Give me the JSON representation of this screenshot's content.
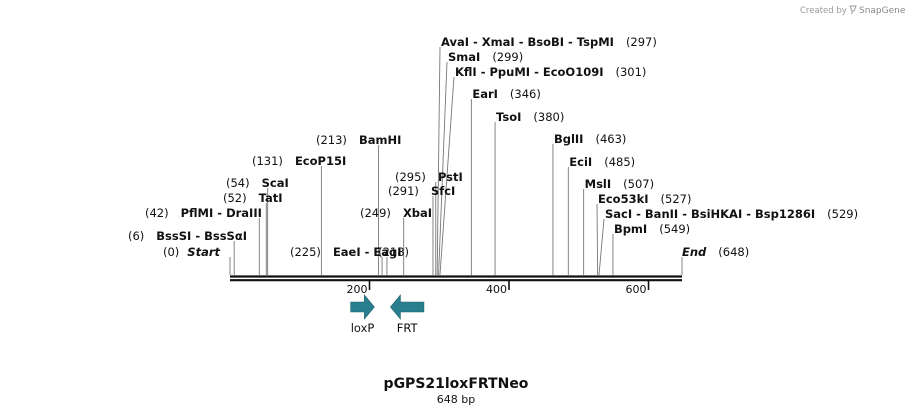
{
  "credit": {
    "prefix": "Created by",
    "brand": "SnapGene"
  },
  "map": {
    "name": "pGPS21loxFRTNeo",
    "length_label": "648 bp",
    "total_bp": 648,
    "backbone_color": "#111111",
    "feature_color": "#2a7f8f",
    "tick_labels": [
      {
        "bp": 200,
        "text": "200"
      },
      {
        "bp": 400,
        "text": "400"
      },
      {
        "bp": 600,
        "text": "600"
      }
    ],
    "ends": [
      {
        "bp": 0,
        "pos": "(0)",
        "name": "Start"
      },
      {
        "bp": 648,
        "pos": "(648)",
        "name": "End"
      }
    ],
    "sites": [
      {
        "id": "s6",
        "bp": 6,
        "pos": "(6)",
        "name": "BssSI  -  BssSαI"
      },
      {
        "id": "s42",
        "bp": 42,
        "pos": "(42)",
        "name": "PflMI  -  DraIII"
      },
      {
        "id": "s52",
        "bp": 52,
        "pos": "(52)",
        "name": "TatI"
      },
      {
        "id": "s54",
        "bp": 54,
        "pos": "(54)",
        "name": "ScaI"
      },
      {
        "id": "s131",
        "bp": 131,
        "pos": "(131)",
        "name": "EcoP15I"
      },
      {
        "id": "s213",
        "bp": 213,
        "pos": "(213)",
        "name": "BamHI"
      },
      {
        "id": "s218",
        "bp": 218,
        "pos": "(218)",
        "name": ""
      },
      {
        "id": "s225",
        "bp": 225,
        "pos": "(225)",
        "name": "EaeI  -  EagI"
      },
      {
        "id": "s249",
        "bp": 249,
        "pos": "(249)",
        "name": "XbaI"
      },
      {
        "id": "s291",
        "bp": 291,
        "pos": "(291)",
        "name": "SfcI"
      },
      {
        "id": "s295",
        "bp": 295,
        "pos": "(295)",
        "name": "PstI"
      },
      {
        "id": "s297",
        "bp": 297,
        "pos": "(297)",
        "name": "AvaI  -  XmaI  -  BsoBI  -  TspMI"
      },
      {
        "id": "s299",
        "bp": 299,
        "pos": "(299)",
        "name": "SmaI"
      },
      {
        "id": "s301",
        "bp": 301,
        "pos": "(301)",
        "name": "KflI  -  PpuMI  -  EcoO109I"
      },
      {
        "id": "s346",
        "bp": 346,
        "pos": "(346)",
        "name": "EarI"
      },
      {
        "id": "s380",
        "bp": 380,
        "pos": "(380)",
        "name": "TsoI"
      },
      {
        "id": "s463",
        "bp": 463,
        "pos": "(463)",
        "name": "BglII"
      },
      {
        "id": "s485",
        "bp": 485,
        "pos": "(485)",
        "name": "EciI"
      },
      {
        "id": "s507",
        "bp": 507,
        "pos": "(507)",
        "name": "MslI"
      },
      {
        "id": "s527",
        "bp": 527,
        "pos": "(527)",
        "name": "Eco53kI"
      },
      {
        "id": "s529",
        "bp": 529,
        "pos": "(529)",
        "name": "SacI  -  BanII  -  BsiHKAI  -  Bsp1286I"
      },
      {
        "id": "s549",
        "bp": 549,
        "pos": "(549)",
        "name": "BpmI"
      }
    ],
    "features": [
      {
        "name": "loxP",
        "start": 173,
        "end": 207,
        "direction": "forward"
      },
      {
        "name": "FRT",
        "start": 230,
        "end": 278,
        "direction": "reverse"
      }
    ]
  }
}
